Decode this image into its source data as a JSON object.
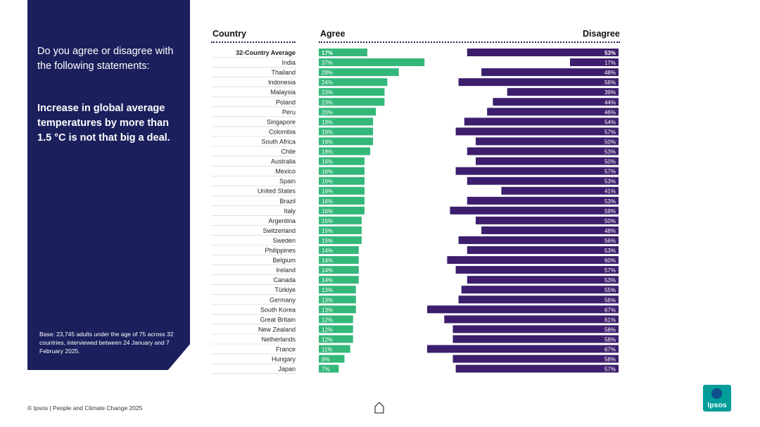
{
  "panel": {
    "question": "Do you agree or disagree with the following statements:",
    "statement": "Increase in global average temperatures by more than 1.5 °C is not that big a deal.",
    "base_note": "Base: 23,745 adults under the age of 75 across 32 countries, interviewed between 24 January and 7 February 2025."
  },
  "headers": {
    "country": "Country",
    "agree": "Agree",
    "disagree": "Disagree"
  },
  "footer": {
    "text": "© Ipsos | People and Climate Change 2025"
  },
  "logo": {
    "text": "Ipsos"
  },
  "colors": {
    "agree": "#34b87a",
    "disagree": "#3d1e6d",
    "panel": "#1b1f5c",
    "logo": "#009d9a"
  },
  "chart_data": {
    "type": "bar",
    "title": "Increase in global average temperatures by more than 1.5 °C is not that big a deal.",
    "categories": [
      "32-Country Average",
      "India",
      "Thailand",
      "Indonesia",
      "Malaysia",
      "Poland",
      "Peru",
      "Singapore",
      "Colombia",
      "South Africa",
      "Chile",
      "Australia",
      "Mexico",
      "Spain",
      "United States",
      "Brazil",
      "Italy",
      "Argentina",
      "Switzerland",
      "Sweden",
      "Philippines",
      "Belgium",
      "Ireland",
      "Canada",
      "Türkiye",
      "Germany",
      "South Korea",
      "Great Britain",
      "New Zealand",
      "Netherlands",
      "France",
      "Hungary",
      "Japan"
    ],
    "series": [
      {
        "name": "Agree",
        "values": [
          17,
          37,
          28,
          24,
          23,
          23,
          20,
          19,
          19,
          19,
          18,
          16,
          16,
          16,
          16,
          16,
          16,
          15,
          15,
          15,
          14,
          14,
          14,
          14,
          13,
          13,
          13,
          12,
          12,
          12,
          11,
          9,
          7
        ],
        "labels": [
          "17%",
          "37%",
          "28%",
          "24%",
          "23%",
          "23%",
          "20%",
          "19%",
          "19%",
          "19%",
          "18%",
          "16%",
          "16%",
          "16%",
          "16%",
          "16%",
          "16%",
          "15%",
          "15%",
          "15%",
          "14%",
          "14%",
          "14%",
          "14%",
          "13%",
          "13%",
          "13%",
          "12%",
          "12%",
          "12%",
          "11%",
          "9%",
          "7%"
        ]
      },
      {
        "name": "Disagree",
        "values": [
          53,
          17,
          48,
          56,
          39,
          44,
          46,
          54,
          57,
          50,
          53,
          50,
          57,
          53,
          41,
          53,
          59,
          50,
          48,
          56,
          53,
          60,
          57,
          53,
          55,
          56,
          67,
          61,
          58,
          58,
          67,
          58,
          57
        ],
        "labels": [
          "53%",
          "17%",
          "48%",
          "56%",
          "39%",
          "44%",
          "46%",
          "54%",
          "57%",
          "50%",
          "53%",
          "50%",
          "57%",
          "53%",
          "41%",
          "53%",
          "59%",
          "50%",
          "48%",
          "56%",
          "53%",
          "60%",
          "57%",
          "53%",
          "55%",
          "56%",
          "67%",
          "61%",
          "58%",
          "58%",
          "67%",
          "58%",
          "57%"
        ]
      }
    ],
    "xlim": [
      0,
      100
    ]
  }
}
